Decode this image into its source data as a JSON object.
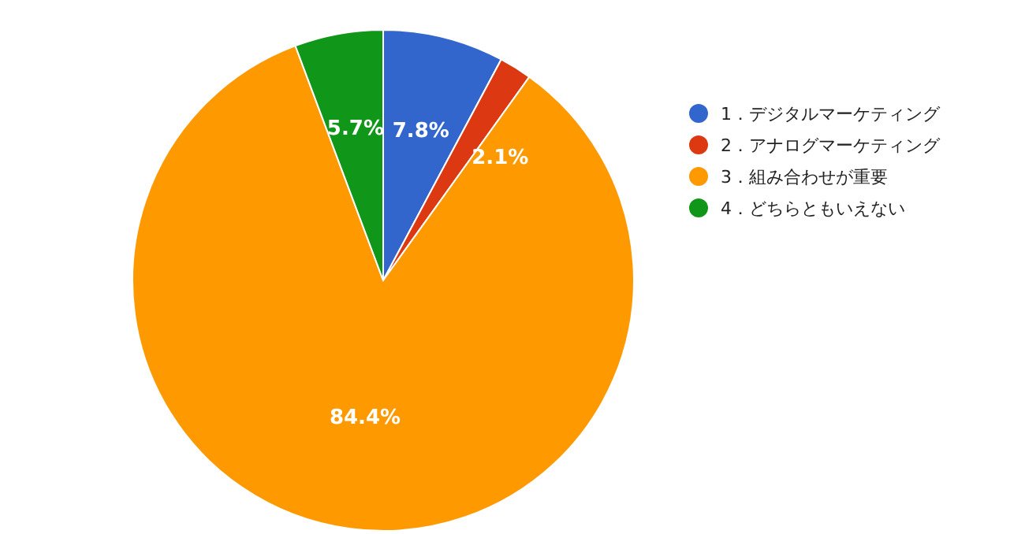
{
  "chart_data": {
    "type": "pie",
    "categories": [
      "1．デジタルマーケティング",
      "2．アナログマーケティング",
      "3．組み合わせが重要",
      "4．どちらともいえない"
    ],
    "values": [
      7.8,
      2.1,
      84.4,
      5.7
    ],
    "colors": [
      "#3366cc",
      "#dc3912",
      "#ff9900",
      "#109618"
    ],
    "value_labels": [
      "7.8%",
      "2.1%",
      "84.4%",
      "5.7%"
    ],
    "legend": "right"
  }
}
